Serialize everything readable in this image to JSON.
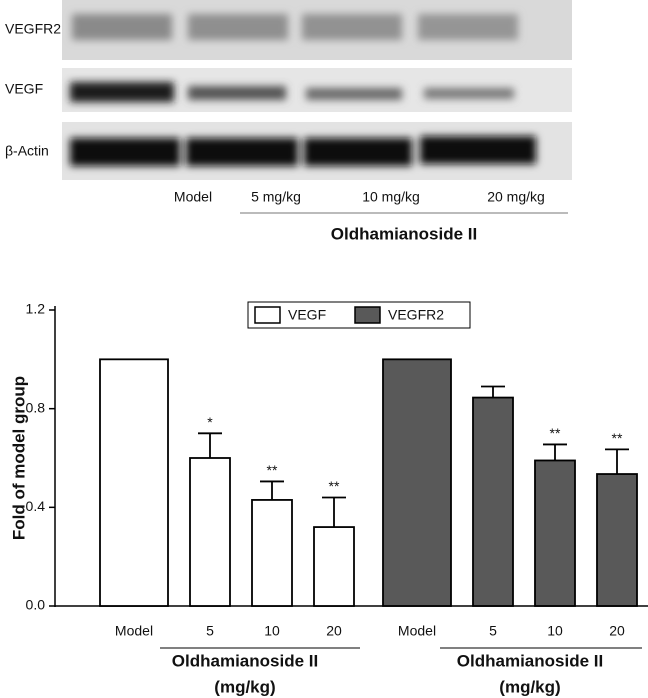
{
  "blot": {
    "rows": [
      "VEGFR2",
      "VEGF",
      "β-Actin"
    ],
    "lanes": [
      "Model",
      "5 mg/kg",
      "10 mg/kg",
      "20 mg/kg"
    ],
    "group": "Oldhamianoside II"
  },
  "chart_data": {
    "type": "bar",
    "ylabel": "Fold of model group",
    "categories": [
      "Model",
      "5",
      "10",
      "20"
    ],
    "group_label": "Oldhamianoside II",
    "group_unit": "(mg/kg)",
    "ylim": [
      0,
      1.2
    ],
    "yticks": [
      {
        "value": 0,
        "label": "0.0"
      },
      0.4,
      0.8,
      1.2
    ],
    "legend": "top",
    "series": [
      {
        "name": "VEGF",
        "color": "#ffffff",
        "values": [
          1,
          0.6,
          0.43,
          0.32
        ],
        "errors": [
          0,
          0.1,
          0.075,
          0.12
        ],
        "annotations": [
          null,
          "*",
          "**",
          "**"
        ]
      },
      {
        "name": "VEGFR2",
        "color": "#595959",
        "values": [
          1,
          0.845,
          0.59,
          0.535
        ],
        "errors": [
          0,
          0.045,
          0.065,
          0.1
        ],
        "annotations": [
          null,
          null,
          "**",
          "**"
        ]
      }
    ]
  }
}
